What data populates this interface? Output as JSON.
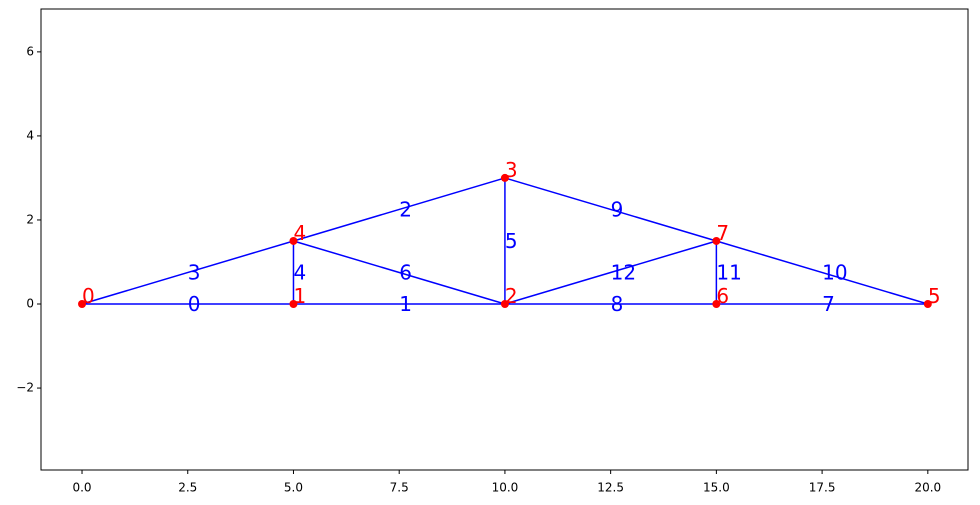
{
  "chart_data": {
    "type": "truss",
    "nodes": [
      {
        "label": "0",
        "x": 0,
        "y": 0
      },
      {
        "label": "1",
        "x": 5,
        "y": 0
      },
      {
        "label": "2",
        "x": 10,
        "y": 0
      },
      {
        "label": "3",
        "x": 10,
        "y": 3
      },
      {
        "label": "4",
        "x": 5,
        "y": 1.5
      },
      {
        "label": "5",
        "x": 20,
        "y": 0
      },
      {
        "label": "6",
        "x": 15,
        "y": 0
      },
      {
        "label": "7",
        "x": 15,
        "y": 1.5
      }
    ],
    "members": [
      {
        "label": "0",
        "start": 0,
        "end": 1
      },
      {
        "label": "1",
        "start": 1,
        "end": 2
      },
      {
        "label": "2",
        "start": 4,
        "end": 3
      },
      {
        "label": "3",
        "start": 0,
        "end": 4
      },
      {
        "label": "4",
        "start": 1,
        "end": 4
      },
      {
        "label": "5",
        "start": 2,
        "end": 3
      },
      {
        "label": "6",
        "start": 4,
        "end": 2
      },
      {
        "label": "7",
        "start": 6,
        "end": 5
      },
      {
        "label": "8",
        "start": 2,
        "end": 6
      },
      {
        "label": "9",
        "start": 3,
        "end": 7
      },
      {
        "label": "10",
        "start": 7,
        "end": 5
      },
      {
        "label": "11",
        "start": 6,
        "end": 7
      },
      {
        "label": "12",
        "start": 2,
        "end": 7
      }
    ],
    "node_color": "red",
    "member_color": "blue",
    "xlim": [
      -0.97,
      20.95
    ],
    "ylim": [
      -3.95,
      7.02
    ],
    "xticks": [
      {
        "value": 0,
        "label": "0.0"
      },
      {
        "value": 2.5,
        "label": "2.5"
      },
      {
        "value": 5,
        "label": "5.0"
      },
      {
        "value": 7.5,
        "label": "7.5"
      },
      {
        "value": 10,
        "label": "10.0"
      },
      {
        "value": 12.5,
        "label": "12.5"
      },
      {
        "value": 15,
        "label": "15.0"
      },
      {
        "value": 17.5,
        "label": "17.5"
      },
      {
        "value": 20,
        "label": "20.0"
      }
    ],
    "yticks": [
      {
        "value": -2,
        "label": "−2"
      },
      0,
      2,
      4,
      6
    ]
  }
}
